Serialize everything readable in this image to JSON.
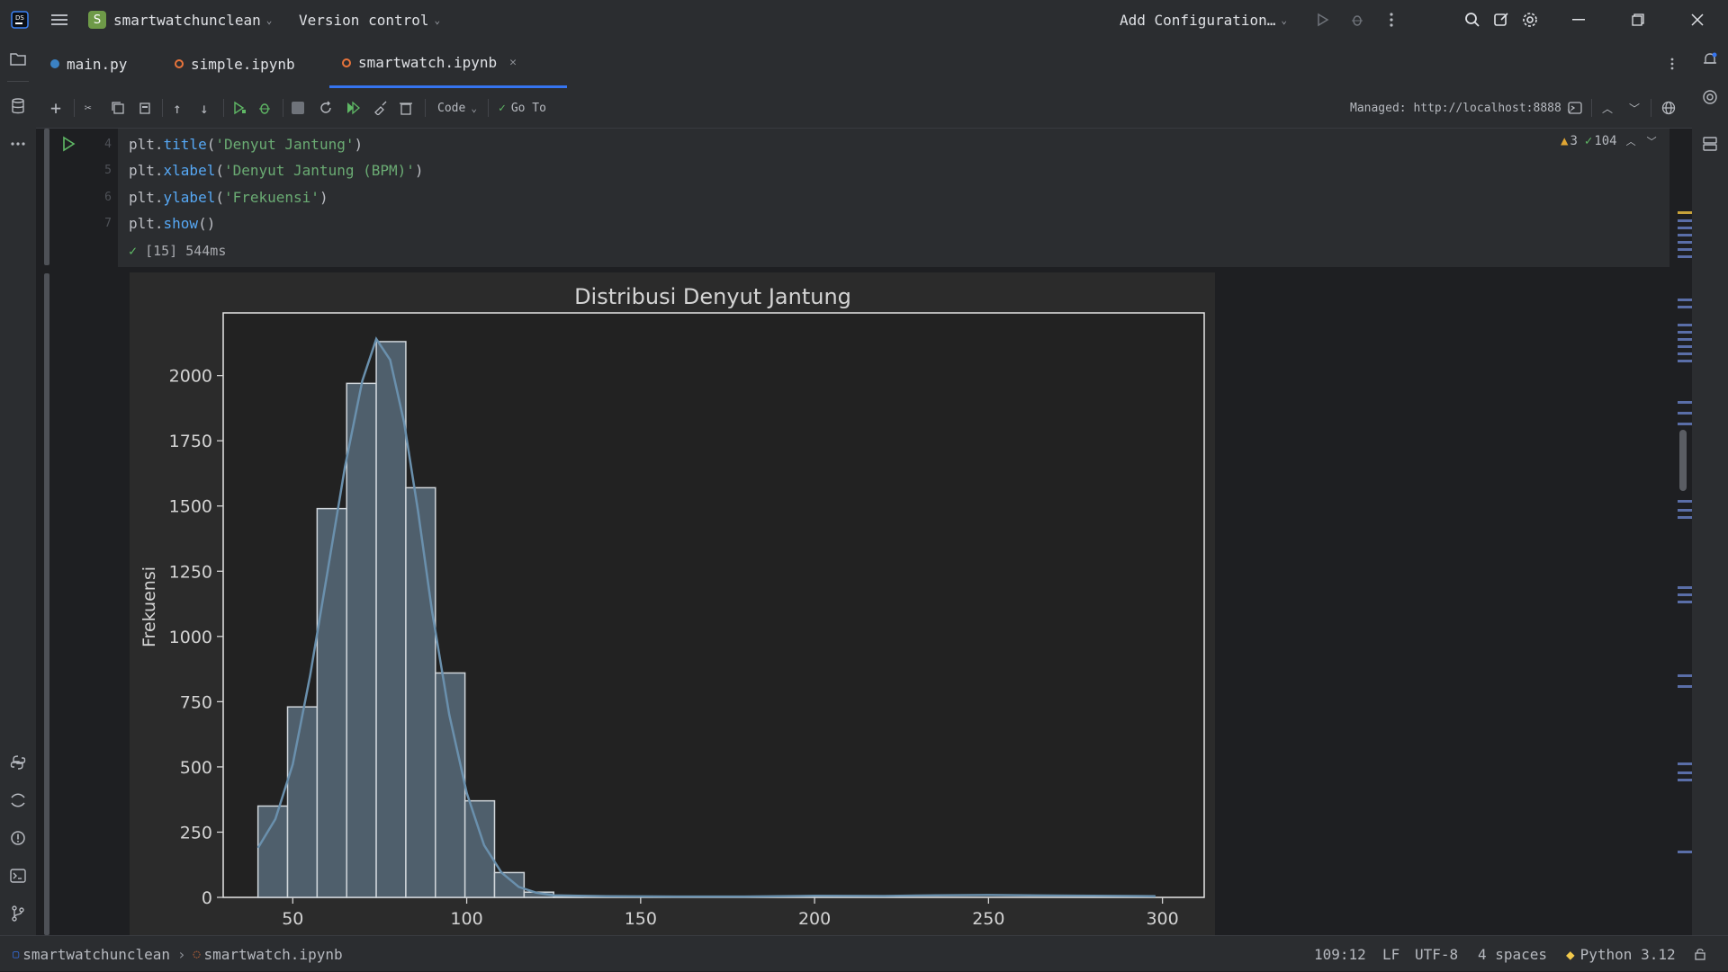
{
  "titlebar": {
    "project_badge": "S",
    "project_name": "smartwatchunclean",
    "vcs_label": "Version control",
    "run_config": "Add Configuration…"
  },
  "tabs": [
    {
      "label": "main.py"
    },
    {
      "label": "simple.ipynb"
    },
    {
      "label": "smartwatch.ipynb",
      "active": true
    }
  ],
  "toolbar": {
    "cell_type": "Code",
    "goto_label": "Go To",
    "server_label": "Managed: http://localhost:8888"
  },
  "cell": {
    "line_numbers": [
      "4",
      "5",
      "6",
      "7"
    ],
    "lines": [
      {
        "prefix": "plt.",
        "fn": "title",
        "arg": "'Denyut Jantung'"
      },
      {
        "prefix": "plt.",
        "fn": "xlabel",
        "arg": "'Denyut Jantung (BPM)'"
      },
      {
        "prefix": "plt.",
        "fn": "ylabel",
        "arg": "'Frekuensi'"
      },
      {
        "prefix": "plt.",
        "fn": "show",
        "arg": ""
      }
    ],
    "exec_status": "[15] 544ms",
    "warnings": "3",
    "ok_count": "104"
  },
  "chart_data": {
    "type": "bar",
    "title": "Distribusi Denyut Jantung",
    "xlabel": "",
    "ylabel": "Frekuensi",
    "xlim": [
      30,
      312
    ],
    "ylim": [
      0,
      2240
    ],
    "xticks": [
      50,
      100,
      150,
      200,
      250,
      300
    ],
    "yticks": [
      0,
      250,
      500,
      750,
      1000,
      1250,
      1500,
      1750,
      2000
    ],
    "bin_width": 8.5,
    "bins": [
      {
        "x0": 40,
        "value": 350
      },
      {
        "x0": 48.5,
        "value": 730
      },
      {
        "x0": 57,
        "value": 1490
      },
      {
        "x0": 65.5,
        "value": 1970
      },
      {
        "x0": 74,
        "value": 2130
      },
      {
        "x0": 82.5,
        "value": 1570
      },
      {
        "x0": 91,
        "value": 860
      },
      {
        "x0": 99.5,
        "value": 370
      },
      {
        "x0": 108,
        "value": 95
      },
      {
        "x0": 116.5,
        "value": 20
      },
      {
        "x0": 125,
        "value": 5
      }
    ],
    "kde": [
      [
        40,
        190
      ],
      [
        45,
        300
      ],
      [
        50,
        510
      ],
      [
        55,
        850
      ],
      [
        60,
        1250
      ],
      [
        65,
        1650
      ],
      [
        70,
        1980
      ],
      [
        74,
        2140
      ],
      [
        78,
        2060
      ],
      [
        82,
        1820
      ],
      [
        86,
        1480
      ],
      [
        90,
        1100
      ],
      [
        95,
        700
      ],
      [
        100,
        400
      ],
      [
        105,
        200
      ],
      [
        110,
        95
      ],
      [
        115,
        40
      ],
      [
        120,
        18
      ],
      [
        125,
        8
      ],
      [
        140,
        4
      ],
      [
        160,
        3
      ],
      [
        180,
        3
      ],
      [
        200,
        6
      ],
      [
        220,
        5
      ],
      [
        235,
        8
      ],
      [
        250,
        9
      ],
      [
        270,
        7
      ],
      [
        290,
        5
      ],
      [
        298,
        4
      ]
    ],
    "bar_fill": "#4f5f6c",
    "bar_edge": "#d0d6db",
    "line_color": "#6a90ad",
    "grid": false
  },
  "statusbar": {
    "project": "smartwatchunclean",
    "file": "smartwatch.ipynb",
    "position": "109:12",
    "line_ending": "LF",
    "encoding": "UTF-8",
    "indent": "4 spaces",
    "interpreter": "Python 3.12"
  },
  "colors": {
    "accent": "#3574f0",
    "run_green": "#5fb865",
    "warn": "#e0a634"
  }
}
